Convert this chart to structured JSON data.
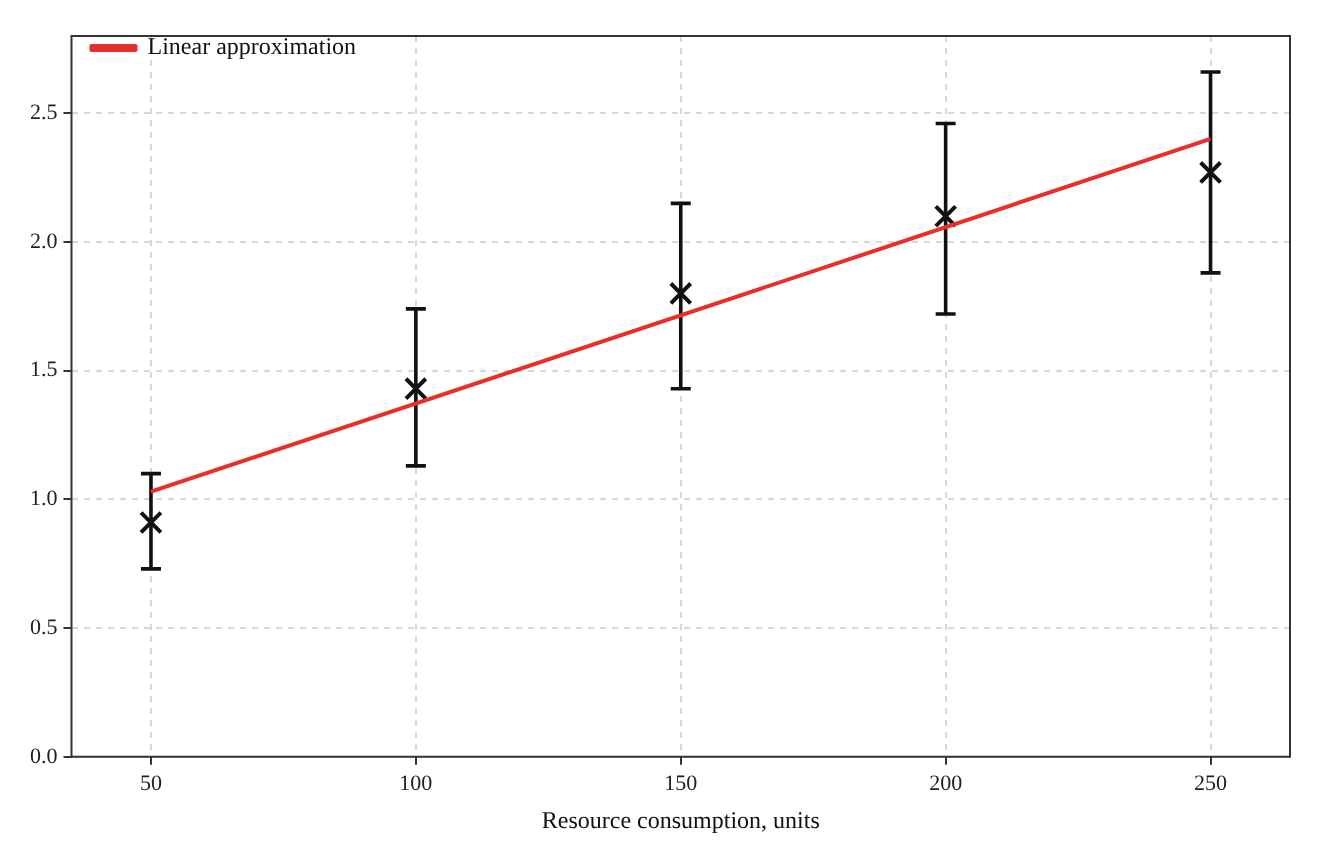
{
  "chart_data": {
    "type": "scatter",
    "xlabel": "Resource consumption, units",
    "xlim": [
      35,
      265
    ],
    "xticks": [
      50,
      100,
      150,
      200,
      250
    ],
    "ylim": [
      0,
      2.8
    ],
    "yticks": [
      {
        "value": 0,
        "label": "0.0"
      },
      0.5,
      {
        "value": 1,
        "label": "1.0"
      },
      1.5,
      {
        "value": 2,
        "label": "2.0"
      },
      2.5
    ],
    "grid": true,
    "legend": "top left",
    "marker": "cross",
    "series": [
      {
        "type": "line",
        "name": "Linear approximation",
        "color": "#e8302a",
        "x": [
          50,
          250
        ],
        "values": [
          1.03,
          2.4
        ],
        "line_style": "solid",
        "marker": "none"
      },
      {
        "color": "#111111",
        "x": [
          50,
          100,
          150,
          200,
          250
        ],
        "values": [
          0.91,
          1.43,
          1.8,
          2.1,
          2.27
        ],
        "errors": [
          [
            0.73,
            1.1
          ],
          [
            1.13,
            1.74
          ],
          [
            1.43,
            2.15
          ],
          [
            1.72,
            2.46
          ],
          [
            1.88,
            2.66
          ]
        ]
      }
    ]
  }
}
